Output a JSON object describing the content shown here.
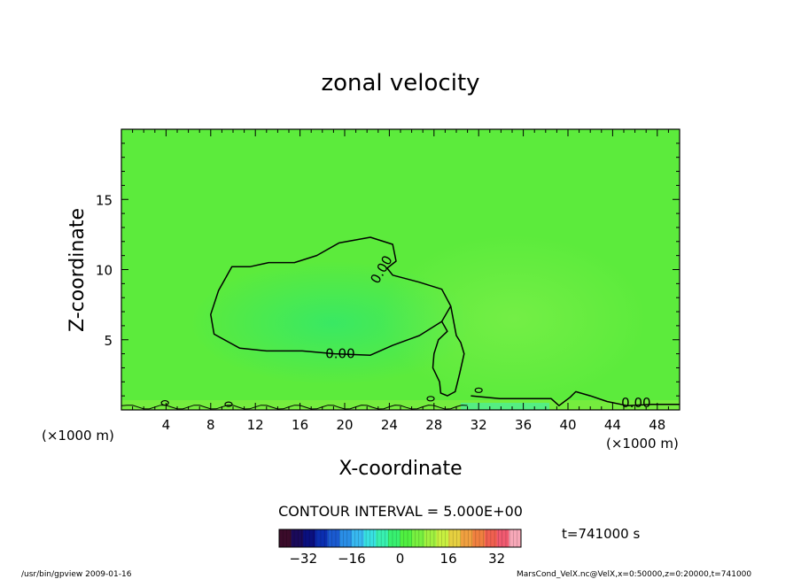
{
  "chart_data": {
    "type": "heatmap",
    "title": "zonal velocity",
    "xlabel": "X-coordinate",
    "ylabel": "Z-coordinate",
    "x_unit": "(×1000 m)",
    "x_unit_right": "(×1000 m)",
    "xlim": [
      0,
      50
    ],
    "ylim": [
      0,
      20
    ],
    "x_ticks": [
      4,
      8,
      12,
      16,
      20,
      24,
      28,
      32,
      36,
      40,
      44,
      48
    ],
    "y_ticks": [
      5,
      10,
      15
    ],
    "contour_interval_text": "CONTOUR INTERVAL = 5.000E+00",
    "contour_labels": [
      {
        "text": "0.00",
        "x": 19.6,
        "z": 4.0,
        "rotate": 0
      },
      {
        "text": "0.00",
        "x": 23.3,
        "z": 10.0,
        "rotate": -60
      },
      {
        "text": "0.00",
        "x": 46.1,
        "z": 0.5,
        "rotate": 0
      }
    ],
    "zero_contour_main": [
      [
        22.3,
        12.3
      ],
      [
        24.3,
        11.8
      ],
      [
        24.6,
        10.6
      ],
      [
        23.8,
        10.1
      ],
      [
        24.3,
        9.6
      ],
      [
        26.7,
        9.1
      ],
      [
        28.7,
        8.6
      ],
      [
        29.5,
        7.4
      ],
      [
        28.7,
        6.3
      ],
      [
        26.7,
        5.3
      ],
      [
        24.3,
        4.6
      ],
      [
        22.3,
        3.9
      ],
      [
        19.1,
        4.0
      ],
      [
        16.2,
        4.2
      ],
      [
        13.0,
        4.2
      ],
      [
        10.6,
        4.4
      ],
      [
        8.3,
        5.4
      ],
      [
        8.0,
        6.8
      ],
      [
        8.7,
        8.5
      ],
      [
        9.9,
        10.2
      ],
      [
        11.5,
        10.2
      ],
      [
        13.2,
        10.5
      ],
      [
        15.5,
        10.5
      ],
      [
        17.5,
        11.0
      ],
      [
        19.5,
        11.9
      ],
      [
        22.3,
        12.3
      ]
    ],
    "zero_contour_lobe": [
      [
        28.7,
        6.3
      ],
      [
        29.2,
        5.6
      ],
      [
        28.4,
        5.0
      ],
      [
        28.0,
        4.0
      ],
      [
        27.9,
        3.0
      ],
      [
        28.5,
        2.0
      ],
      [
        28.6,
        1.2
      ],
      [
        29.2,
        1.0
      ],
      [
        29.9,
        1.3
      ],
      [
        30.3,
        2.6
      ],
      [
        30.7,
        4.0
      ],
      [
        30.4,
        4.8
      ],
      [
        30.0,
        5.3
      ],
      [
        29.5,
        7.4
      ]
    ],
    "bottom_contour": [
      [
        31.3,
        1.0
      ],
      [
        33.9,
        0.8
      ],
      [
        36.3,
        0.8
      ],
      [
        38.5,
        0.8
      ],
      [
        39.2,
        0.3
      ],
      [
        40.2,
        0.9
      ],
      [
        40.7,
        1.3
      ],
      [
        42.0,
        1.0
      ],
      [
        43.5,
        0.6
      ],
      [
        45.3,
        0.3
      ],
      [
        47.5,
        0.4
      ],
      [
        50.0,
        0.4
      ]
    ],
    "colorbar": {
      "ticks": [
        -32,
        -16,
        0,
        16,
        32
      ],
      "range": [
        -40,
        40
      ],
      "colors": [
        "#3b0b2a",
        "#1a0a5a",
        "#0a1080",
        "#0b2eb0",
        "#1a5ad0",
        "#2a8ee6",
        "#38b8f0",
        "#38e0e0",
        "#38f0b0",
        "#38f070",
        "#50f040",
        "#78f040",
        "#a0f040",
        "#c8f040",
        "#e6d040",
        "#f0a040",
        "#f08040",
        "#f06050",
        "#f05a70",
        "#f7a8b8"
      ]
    },
    "time_label": "t=741000 s"
  },
  "footer": {
    "left": "/usr/bin/gpview   2009-01-16",
    "right": "MarsCond_VelX.nc@VelX,x=0:50000,z=0:20000,t=741000"
  }
}
